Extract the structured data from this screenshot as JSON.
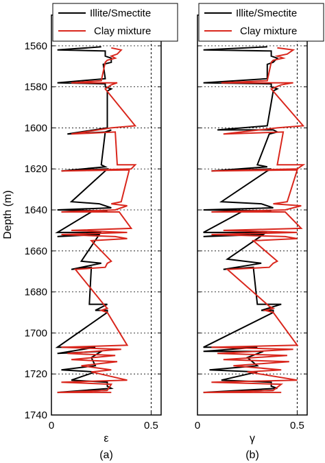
{
  "chart_data": [
    {
      "type": "line",
      "panel_label": "(a)",
      "xlabel": "ε",
      "ylabel": "Depth (m)",
      "xlim": [
        0,
        0.55
      ],
      "ylim": [
        1545,
        1740
      ],
      "y_inverted": true,
      "x_ticks": [
        "0",
        "0.5"
      ],
      "x_tick_values": [
        0,
        0.5
      ],
      "y_ticks": [
        "1560",
        "1580",
        "1600",
        "1620",
        "1640",
        "1660",
        "1680",
        "1700",
        "1720",
        "1740"
      ],
      "y_tick_values": [
        1560,
        1580,
        1600,
        1620,
        1640,
        1660,
        1680,
        1700,
        1720,
        1740
      ],
      "grid": "horizontal dotted at y ticks",
      "reference_line_x": 0.5,
      "legend_position": "top",
      "series": [
        {
          "name": "Illite/Smectite",
          "color": "#000000",
          "points": [
            [
              0.25,
              1560.5
            ],
            [
              0.03,
              1562
            ],
            [
              0.27,
              1562.5
            ],
            [
              0.27,
              1565
            ],
            [
              0.3,
              1566
            ],
            [
              0.3,
              1568
            ],
            [
              0.26,
              1569
            ],
            [
              0.27,
              1576
            ],
            [
              0.03,
              1578
            ],
            [
              0.27,
              1578.5
            ],
            [
              0.27,
              1580
            ],
            [
              0.3,
              1581
            ],
            [
              0.28,
              1582
            ],
            [
              0.28,
              1600
            ],
            [
              0.08,
              1603
            ],
            [
              0.28,
              1602
            ],
            [
              0.3,
              1601
            ],
            [
              0.27,
              1602
            ],
            [
              0.25,
              1618
            ],
            [
              0.27,
              1619
            ],
            [
              0.05,
              1621
            ],
            [
              0.28,
              1620
            ],
            [
              0.27,
              1621
            ],
            [
              0.1,
              1636
            ],
            [
              0.24,
              1637
            ],
            [
              0.3,
              1639
            ],
            [
              0.03,
              1640
            ],
            [
              0.28,
              1640.5
            ],
            [
              0.26,
              1641
            ],
            [
              0.2,
              1641
            ],
            [
              0.03,
              1651
            ],
            [
              0.25,
              1651
            ],
            [
              0.03,
              1653
            ],
            [
              0.24,
              1652
            ],
            [
              0.15,
              1665
            ],
            [
              0.25,
              1666
            ],
            [
              0.1,
              1669
            ],
            [
              0.2,
              1668
            ],
            [
              0.19,
              1686
            ],
            [
              0.28,
              1686
            ],
            [
              0.22,
              1689
            ],
            [
              0.28,
              1689
            ],
            [
              0.28,
              1690
            ],
            [
              0.03,
              1707
            ],
            [
              0.22,
              1707
            ],
            [
              0.03,
              1710
            ],
            [
              0.25,
              1709
            ],
            [
              0.2,
              1712
            ],
            [
              0.22,
              1716
            ],
            [
              0.05,
              1718
            ],
            [
              0.22,
              1719
            ],
            [
              0.1,
              1723
            ],
            [
              0.28,
              1724
            ],
            [
              0.28,
              1726
            ],
            [
              0.3,
              1727
            ],
            [
              0.03,
              1729
            ],
            [
              0.28,
              1728
            ]
          ]
        },
        {
          "name": "Clay mixture",
          "color": "#d9261c",
          "points": [
            [
              0.3,
              1561
            ],
            [
              0.35,
              1562
            ],
            [
              0.33,
              1564
            ],
            [
              0.3,
              1565
            ],
            [
              0.32,
              1566
            ],
            [
              0.28,
              1567
            ],
            [
              0.27,
              1568
            ],
            [
              0.25,
              1577
            ],
            [
              0.1,
              1578
            ],
            [
              0.33,
              1578
            ],
            [
              0.3,
              1579
            ],
            [
              0.27,
              1581
            ],
            [
              0.42,
              1599
            ],
            [
              0.3,
              1600
            ],
            [
              0.1,
              1603
            ],
            [
              0.32,
              1602
            ],
            [
              0.33,
              1618
            ],
            [
              0.42,
              1618
            ],
            [
              0.4,
              1620
            ],
            [
              0.05,
              1621
            ],
            [
              0.39,
              1620.5
            ],
            [
              0.35,
              1636
            ],
            [
              0.3,
              1637
            ],
            [
              0.38,
              1638
            ],
            [
              0.32,
              1640
            ],
            [
              0.05,
              1641
            ],
            [
              0.34,
              1641
            ],
            [
              0.4,
              1649
            ],
            [
              0.1,
              1650
            ],
            [
              0.38,
              1651
            ],
            [
              0.05,
              1652
            ],
            [
              0.32,
              1653
            ],
            [
              0.38,
              1654
            ],
            [
              0.2,
              1655
            ],
            [
              0.3,
              1665
            ],
            [
              0.28,
              1666
            ],
            [
              0.27,
              1668
            ],
            [
              0.12,
              1669
            ],
            [
              0.27,
              1687
            ],
            [
              0.28,
              1688
            ],
            [
              0.25,
              1689
            ],
            [
              0.28,
              1690
            ],
            [
              0.38,
              1706
            ],
            [
              0.05,
              1707
            ],
            [
              0.35,
              1708
            ],
            [
              0.08,
              1710
            ],
            [
              0.32,
              1711
            ],
            [
              0.1,
              1713
            ],
            [
              0.33,
              1714
            ],
            [
              0.15,
              1716
            ],
            [
              0.3,
              1718
            ],
            [
              0.2,
              1719
            ],
            [
              0.38,
              1723
            ],
            [
              0.05,
              1724
            ],
            [
              0.3,
              1725
            ],
            [
              0.28,
              1728
            ],
            [
              0.03,
              1729
            ],
            [
              0.3,
              1729
            ]
          ]
        }
      ]
    },
    {
      "type": "line",
      "panel_label": "(b)",
      "xlabel": "γ",
      "ylabel": "",
      "xlim": [
        0,
        0.55
      ],
      "ylim": [
        1545,
        1740
      ],
      "y_inverted": true,
      "x_ticks": [
        "0",
        "0.5"
      ],
      "x_tick_values": [
        0,
        0.5
      ],
      "y_ticks": [],
      "y_tick_values": [
        1560,
        1580,
        1600,
        1620,
        1640,
        1660,
        1680,
        1700,
        1720,
        1740
      ],
      "grid": "horizontal dotted at y ticks",
      "reference_line_x": 0.5,
      "legend_position": "top",
      "series": [
        {
          "name": "Illite/Smectite",
          "color": "#000000",
          "points": [
            [
              0.35,
              1560.5
            ],
            [
              0.03,
              1562
            ],
            [
              0.37,
              1562.5
            ],
            [
              0.37,
              1565
            ],
            [
              0.4,
              1566
            ],
            [
              0.38,
              1568
            ],
            [
              0.35,
              1569
            ],
            [
              0.35,
              1576
            ],
            [
              0.03,
              1578
            ],
            [
              0.37,
              1578.5
            ],
            [
              0.37,
              1580
            ],
            [
              0.4,
              1581
            ],
            [
              0.38,
              1582
            ],
            [
              0.35,
              1599
            ],
            [
              0.1,
              1601
            ],
            [
              0.38,
              1601
            ],
            [
              0.4,
              1602
            ],
            [
              0.36,
              1603
            ],
            [
              0.3,
              1618
            ],
            [
              0.35,
              1619
            ],
            [
              0.07,
              1621
            ],
            [
              0.37,
              1620
            ],
            [
              0.35,
              1621
            ],
            [
              0.12,
              1636
            ],
            [
              0.32,
              1637
            ],
            [
              0.38,
              1639
            ],
            [
              0.03,
              1640
            ],
            [
              0.37,
              1640.5
            ],
            [
              0.34,
              1641
            ],
            [
              0.22,
              1641
            ],
            [
              0.03,
              1651
            ],
            [
              0.35,
              1651
            ],
            [
              0.03,
              1653
            ],
            [
              0.33,
              1652
            ],
            [
              0.15,
              1664
            ],
            [
              0.32,
              1666
            ],
            [
              0.13,
              1669
            ],
            [
              0.28,
              1668
            ],
            [
              0.3,
              1686
            ],
            [
              0.42,
              1686
            ],
            [
              0.32,
              1689
            ],
            [
              0.38,
              1689
            ],
            [
              0.38,
              1690
            ],
            [
              0.03,
              1707
            ],
            [
              0.3,
              1707
            ],
            [
              0.03,
              1709
            ],
            [
              0.33,
              1709
            ],
            [
              0.25,
              1712
            ],
            [
              0.3,
              1716
            ],
            [
              0.06,
              1718
            ],
            [
              0.3,
              1719
            ],
            [
              0.12,
              1723
            ],
            [
              0.37,
              1724
            ],
            [
              0.37,
              1726
            ],
            [
              0.4,
              1727
            ],
            [
              0.03,
              1729
            ],
            [
              0.38,
              1728
            ]
          ]
        },
        {
          "name": "Clay mixture",
          "color": "#d9261c",
          "points": [
            [
              0.4,
              1561
            ],
            [
              0.48,
              1562
            ],
            [
              0.45,
              1564
            ],
            [
              0.4,
              1565
            ],
            [
              0.43,
              1566
            ],
            [
              0.38,
              1567
            ],
            [
              0.37,
              1568
            ],
            [
              0.35,
              1577
            ],
            [
              0.12,
              1578
            ],
            [
              0.48,
              1578
            ],
            [
              0.42,
              1579
            ],
            [
              0.37,
              1581
            ],
            [
              0.53,
              1599
            ],
            [
              0.4,
              1600
            ],
            [
              0.13,
              1603
            ],
            [
              0.43,
              1602
            ],
            [
              0.4,
              1618
            ],
            [
              0.53,
              1618
            ],
            [
              0.5,
              1620
            ],
            [
              0.07,
              1621
            ],
            [
              0.5,
              1620.5
            ],
            [
              0.45,
              1636
            ],
            [
              0.38,
              1637
            ],
            [
              0.52,
              1638
            ],
            [
              0.44,
              1640
            ],
            [
              0.07,
              1641
            ],
            [
              0.44,
              1641
            ],
            [
              0.52,
              1649
            ],
            [
              0.13,
              1650
            ],
            [
              0.5,
              1651
            ],
            [
              0.07,
              1652
            ],
            [
              0.44,
              1653
            ],
            [
              0.5,
              1654
            ],
            [
              0.28,
              1655
            ],
            [
              0.4,
              1665
            ],
            [
              0.38,
              1666
            ],
            [
              0.36,
              1668
            ],
            [
              0.15,
              1669
            ],
            [
              0.36,
              1687
            ],
            [
              0.38,
              1688
            ],
            [
              0.34,
              1689
            ],
            [
              0.38,
              1690
            ],
            [
              0.5,
              1706
            ],
            [
              0.07,
              1707
            ],
            [
              0.48,
              1708
            ],
            [
              0.1,
              1710
            ],
            [
              0.45,
              1711
            ],
            [
              0.13,
              1713
            ],
            [
              0.46,
              1714
            ],
            [
              0.18,
              1716
            ],
            [
              0.42,
              1718
            ],
            [
              0.25,
              1719
            ],
            [
              0.5,
              1723
            ],
            [
              0.07,
              1724
            ],
            [
              0.42,
              1725
            ],
            [
              0.38,
              1728
            ],
            [
              0.03,
              1729
            ],
            [
              0.42,
              1729
            ]
          ]
        }
      ]
    }
  ]
}
